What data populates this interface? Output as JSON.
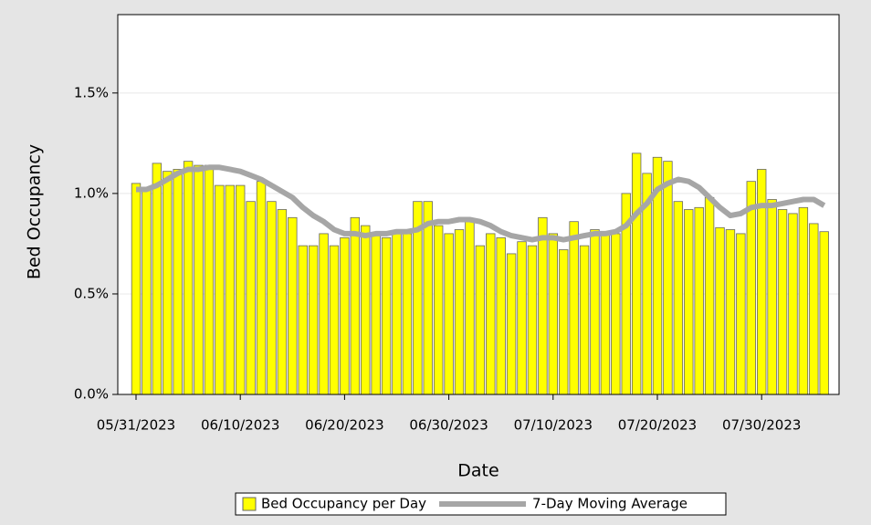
{
  "chart_data": {
    "type": "bar",
    "x_label": "Date",
    "y_label": "Bed Occupancy",
    "categories": [
      "05/31/2023",
      null,
      null,
      null,
      null,
      null,
      null,
      null,
      null,
      null,
      "06/10/2023",
      null,
      null,
      null,
      null,
      null,
      null,
      null,
      null,
      null,
      "06/20/2023",
      null,
      null,
      null,
      null,
      null,
      null,
      null,
      null,
      null,
      "06/30/2023",
      null,
      null,
      null,
      null,
      null,
      null,
      null,
      null,
      null,
      "07/10/2023",
      null,
      null,
      null,
      null,
      null,
      null,
      null,
      null,
      null,
      "07/20/2023",
      null,
      null,
      null,
      null,
      null,
      null,
      null,
      null,
      null,
      "07/30/2023",
      null,
      null,
      null,
      null,
      null,
      null
    ],
    "series": [
      {
        "name": "Bed Occupancy per Day",
        "type": "bar",
        "color": "#ffff00",
        "values": [
          1.05,
          1.02,
          1.15,
          1.11,
          1.12,
          1.16,
          1.14,
          1.14,
          1.04,
          1.04,
          1.04,
          0.96,
          1.06,
          0.96,
          0.92,
          0.88,
          0.74,
          0.74,
          0.8,
          0.74,
          0.78,
          0.88,
          0.84,
          0.8,
          0.78,
          0.8,
          0.8,
          0.96,
          0.96,
          0.84,
          0.8,
          0.82,
          0.86,
          0.74,
          0.8,
          0.78,
          0.7,
          0.76,
          0.74,
          0.88,
          0.8,
          0.72,
          0.86,
          0.74,
          0.82,
          0.8,
          0.8,
          1.0,
          1.2,
          1.1,
          1.18,
          1.16,
          0.96,
          0.92,
          0.93,
          0.98,
          0.83,
          0.82,
          0.8,
          1.06,
          1.12,
          0.97,
          0.92,
          0.9,
          0.93,
          0.85,
          0.81
        ]
      },
      {
        "name": "7-Day Moving Average",
        "type": "line",
        "color": "#a6a6a6",
        "values": [
          1.02,
          1.02,
          1.04,
          1.07,
          1.1,
          1.12,
          1.12,
          1.13,
          1.13,
          1.12,
          1.11,
          1.09,
          1.07,
          1.04,
          1.01,
          0.98,
          0.93,
          0.89,
          0.86,
          0.82,
          0.8,
          0.8,
          0.79,
          0.8,
          0.8,
          0.81,
          0.81,
          0.82,
          0.85,
          0.86,
          0.86,
          0.87,
          0.87,
          0.86,
          0.84,
          0.81,
          0.79,
          0.78,
          0.77,
          0.78,
          0.78,
          0.77,
          0.78,
          0.79,
          0.8,
          0.8,
          0.81,
          0.84,
          0.9,
          0.95,
          1.02,
          1.05,
          1.07,
          1.06,
          1.03,
          0.98,
          0.93,
          0.89,
          0.9,
          0.93,
          0.94,
          0.94,
          0.95,
          0.96,
          0.97,
          0.97,
          0.94
        ]
      }
    ],
    "ylim": [
      0,
      1.89
    ],
    "yticks": [
      {
        "value": 0,
        "label": "0.0%"
      },
      {
        "value": 0.5,
        "label": "0.5%"
      },
      {
        "value": 1,
        "label": "1.0%"
      },
      {
        "value": 1.5,
        "label": "1.5%"
      }
    ],
    "grid": true,
    "legend": "bottom"
  }
}
